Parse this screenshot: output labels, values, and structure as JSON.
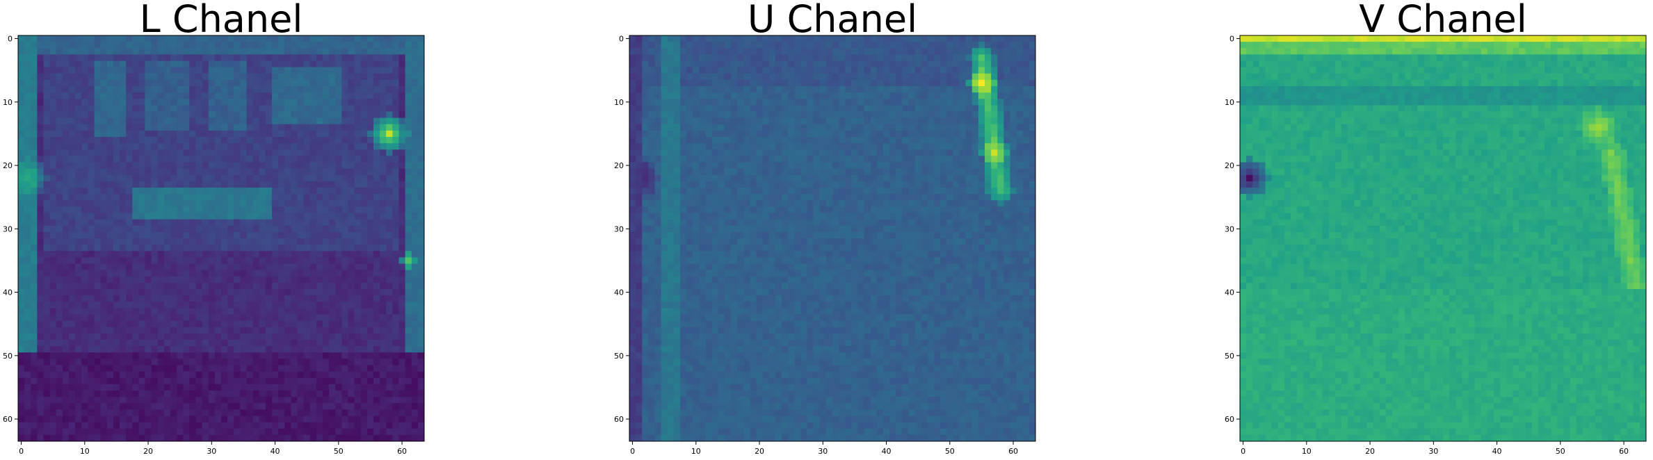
{
  "chart_data": [
    {
      "type": "heatmap",
      "title": "L Chanel",
      "colormap": "viridis",
      "x_ticks": [
        "0",
        "10",
        "20",
        "30",
        "40",
        "50",
        "60"
      ],
      "y_ticks": [
        "0",
        "10",
        "20",
        "30",
        "40",
        "50",
        "60"
      ],
      "xlim": [
        -0.5,
        63.5
      ],
      "ylim": [
        63.5,
        -0.5
      ],
      "grid_size": 64,
      "base_level": 0.13,
      "features": [
        {
          "kind": "band_y",
          "from": 0,
          "to": 3,
          "level": 0.32
        },
        {
          "kind": "rect",
          "x": [
            4,
            60
          ],
          "y": [
            3,
            34
          ],
          "level": 0.2
        },
        {
          "kind": "rect",
          "x": [
            12,
            17
          ],
          "y": [
            4,
            16
          ],
          "level": 0.33
        },
        {
          "kind": "rect",
          "x": [
            20,
            27
          ],
          "y": [
            4,
            15
          ],
          "level": 0.3
        },
        {
          "kind": "rect",
          "x": [
            30,
            36
          ],
          "y": [
            4,
            15
          ],
          "level": 0.31
        },
        {
          "kind": "rect",
          "x": [
            40,
            51
          ],
          "y": [
            5,
            14
          ],
          "level": 0.34
        },
        {
          "kind": "rect",
          "x": [
            18,
            40
          ],
          "y": [
            24,
            29
          ],
          "level": 0.4
        },
        {
          "kind": "band_x",
          "from": 0,
          "to": 3,
          "level": 0.42
        },
        {
          "kind": "band_x",
          "from": 61,
          "to": 64,
          "level": 0.36
        },
        {
          "kind": "blob",
          "x": 58,
          "y": 15,
          "r": 3,
          "level": 0.88
        },
        {
          "kind": "blob",
          "x": 1,
          "y": 22,
          "r": 3,
          "level": 0.62
        },
        {
          "kind": "blob",
          "x": 61,
          "y": 35,
          "r": 1,
          "level": 0.75
        },
        {
          "kind": "rect",
          "x": [
            0,
            64
          ],
          "y": [
            50,
            64
          ],
          "level": 0.07
        }
      ]
    },
    {
      "type": "heatmap",
      "title": "U Chanel",
      "colormap": "viridis",
      "x_ticks": [
        "0",
        "10",
        "20",
        "30",
        "40",
        "50",
        "60"
      ],
      "y_ticks": [
        "0",
        "10",
        "20",
        "30",
        "40",
        "50",
        "60"
      ],
      "xlim": [
        -0.5,
        63.5
      ],
      "ylim": [
        63.5,
        -0.5
      ],
      "grid_size": 64,
      "base_level": 0.31,
      "features": [
        {
          "kind": "band_y",
          "from": 0,
          "to": 8,
          "level": 0.27
        },
        {
          "kind": "blob",
          "x": 1,
          "y": 22,
          "r": 3,
          "level": 0.02
        },
        {
          "kind": "band_x",
          "from": 5,
          "to": 8,
          "level": 0.4
        },
        {
          "kind": "stripe",
          "x1": 55,
          "y1": 3,
          "x2": 58,
          "y2": 24,
          "w": 2,
          "level": 0.72
        },
        {
          "kind": "blob",
          "x": 55,
          "y": 7,
          "r": 2,
          "level": 0.98
        },
        {
          "kind": "blob",
          "x": 57,
          "y": 18,
          "r": 2,
          "level": 0.9
        },
        {
          "kind": "band_x",
          "from": 0,
          "to": 2,
          "level": 0.18
        }
      ]
    },
    {
      "type": "heatmap",
      "title": "V Chanel",
      "colormap": "viridis",
      "x_ticks": [
        "0",
        "10",
        "20",
        "30",
        "40",
        "50",
        "60"
      ],
      "y_ticks": [
        "0",
        "10",
        "20",
        "30",
        "40",
        "50",
        "60"
      ],
      "xlim": [
        -0.5,
        63.5
      ],
      "ylim": [
        63.5,
        -0.5
      ],
      "grid_size": 64,
      "base_level": 0.6,
      "features": [
        {
          "kind": "band_y",
          "from": 0,
          "to": 1,
          "level": 0.92
        },
        {
          "kind": "band_y",
          "from": 1,
          "to": 3,
          "level": 0.75
        },
        {
          "kind": "blob",
          "x": 1,
          "y": 22,
          "r": 3,
          "level": 0.03
        },
        {
          "kind": "blob",
          "x": 56,
          "y": 14,
          "r": 3,
          "level": 0.85
        },
        {
          "kind": "stripe",
          "x1": 58,
          "y1": 18,
          "x2": 62,
          "y2": 40,
          "w": 2,
          "level": 0.78
        },
        {
          "kind": "rect",
          "x": [
            0,
            64
          ],
          "y": [
            8,
            11
          ],
          "level": 0.52
        },
        {
          "kind": "rect",
          "x": [
            0,
            64
          ],
          "y": [
            40,
            64
          ],
          "level": 0.62
        }
      ]
    }
  ]
}
